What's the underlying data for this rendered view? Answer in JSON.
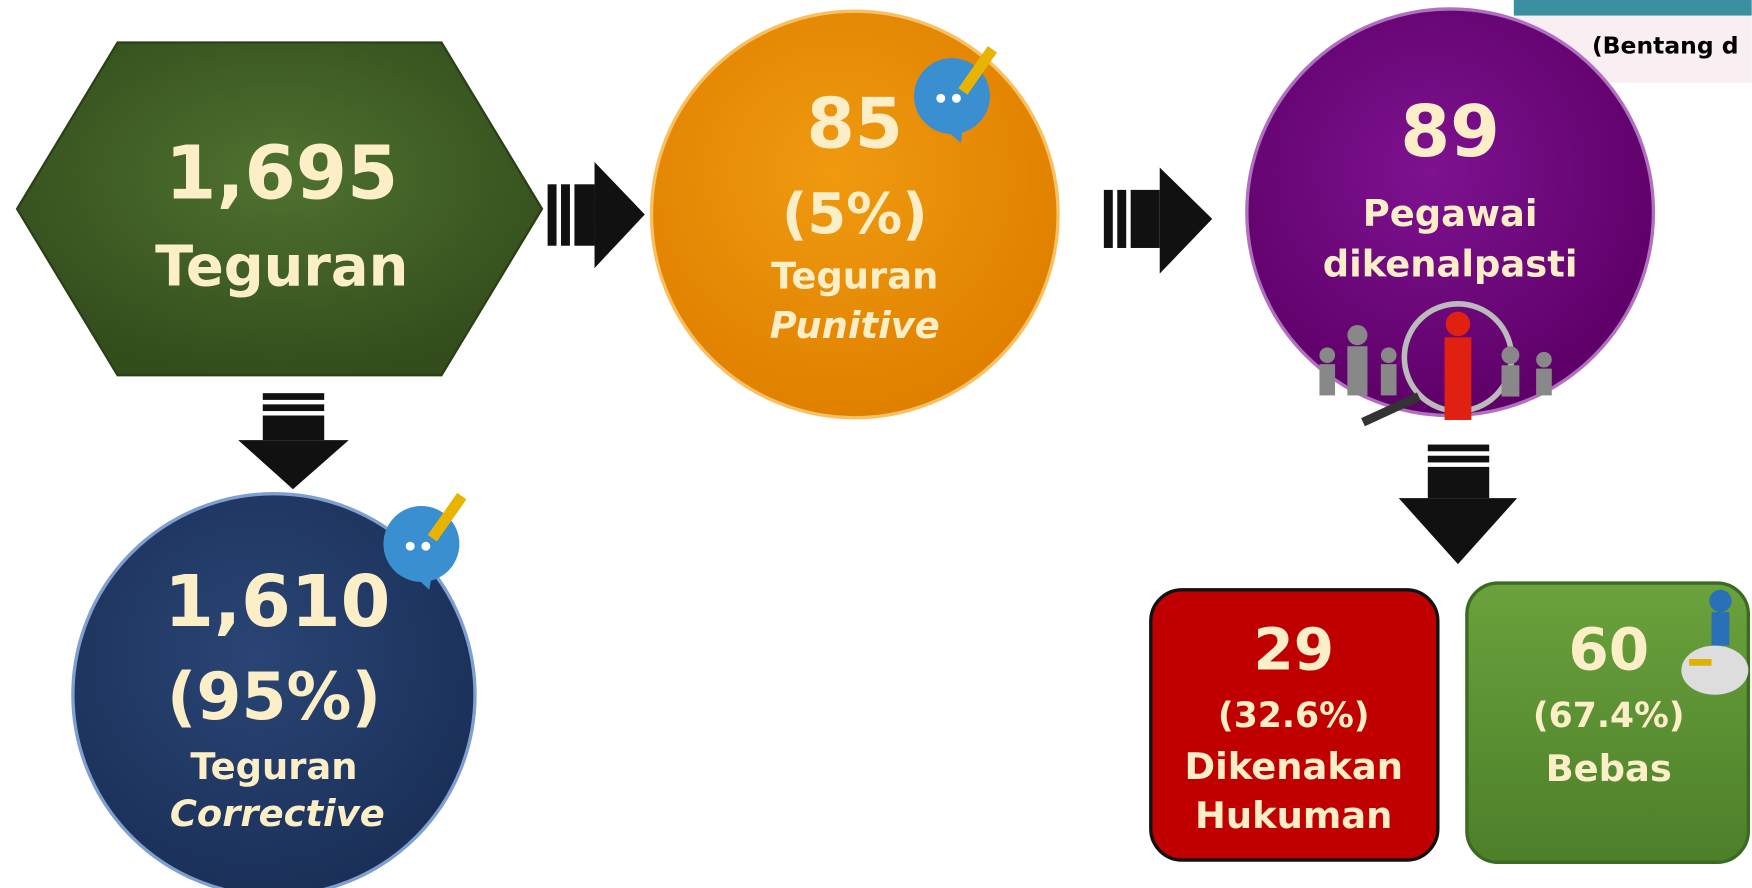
{
  "header_fragment": "(Bentang d",
  "nodes": [
    {
      "value": "1,695",
      "label": "Teguran"
    },
    {
      "value": "85",
      "percent": "(5%)",
      "label": "Teguran",
      "label_italic": "Punitive"
    },
    {
      "value": "89",
      "label_lines": [
        "Pegawai",
        "dikenalpasti"
      ]
    },
    {
      "value": "1,610",
      "percent": "(95%)",
      "label": "Teguran",
      "label_italic": "Corrective"
    },
    {
      "value": "29",
      "percent": "(32.6%)",
      "label_lines": [
        "Dikenakan",
        "Hukuman"
      ]
    },
    {
      "value": "60",
      "percent": "(67.4%)",
      "label": "Bebas"
    }
  ]
}
